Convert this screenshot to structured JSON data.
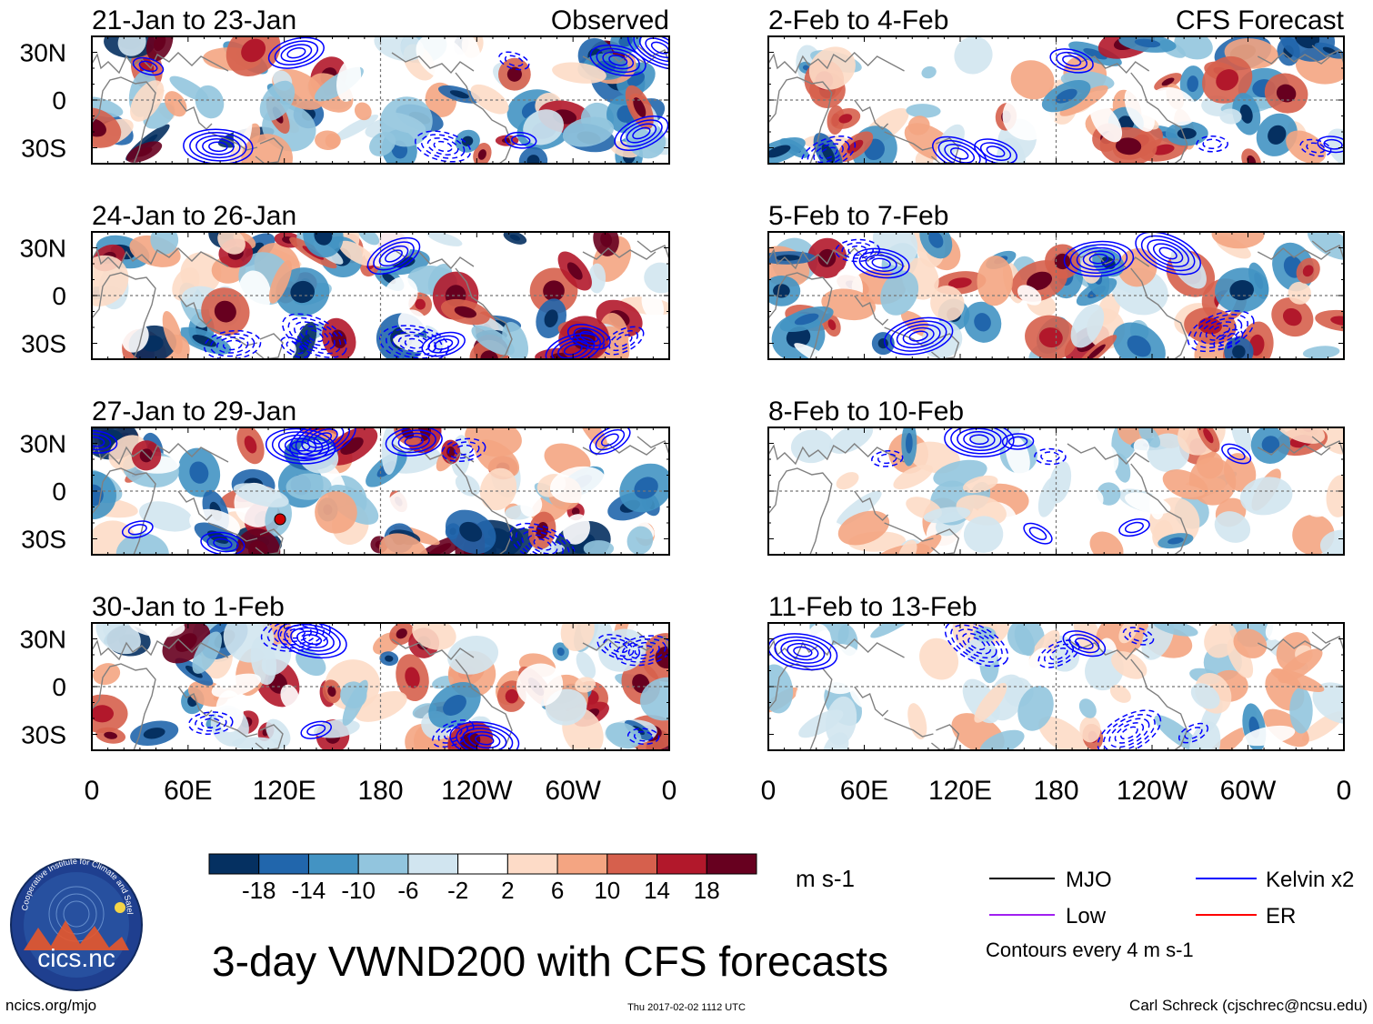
{
  "chart_data": {
    "type": "heatmap",
    "title": "3-day VWND200 with CFS forecasts",
    "variable": "VWND200",
    "units": "m s-1",
    "columns": [
      {
        "label": "Observed",
        "panels": [
          "21-Jan to 23-Jan",
          "24-Jan to 26-Jan",
          "27-Jan to 29-Jan",
          "30-Jan to 1-Feb"
        ]
      },
      {
        "label": "CFS Forecast",
        "panels": [
          "2-Feb to 4-Feb",
          "5-Feb to 7-Feb",
          "8-Feb to 10-Feb",
          "11-Feb to 13-Feb"
        ]
      }
    ],
    "x_axis": {
      "ticks": [
        "0",
        "60E",
        "120E",
        "180",
        "120W",
        "60W",
        "0"
      ],
      "range_deg": [
        0,
        360
      ]
    },
    "y_axis": {
      "ticks": [
        "30N",
        "0",
        "30S"
      ],
      "range_deg": [
        -40,
        40
      ]
    },
    "colorbar": {
      "tick_labels": [
        "-18",
        "-14",
        "-10",
        "-6",
        "-2",
        "2",
        "6",
        "10",
        "14",
        "18"
      ],
      "levels": [
        -18,
        -14,
        -10,
        -6,
        -2,
        2,
        6,
        10,
        14,
        18
      ],
      "colors": [
        "#053061",
        "#2166ac",
        "#4393c3",
        "#92c5de",
        "#d1e5f0",
        "#ffffff",
        "#fddbc7",
        "#f4a582",
        "#d6604d",
        "#b2182b",
        "#67001f"
      ]
    },
    "legend": [
      {
        "label": "MJO",
        "color": "#000000"
      },
      {
        "label": "Kelvin x2",
        "color": "#0000ff"
      },
      {
        "label": "Low",
        "color": "#a020f0"
      },
      {
        "label": "ER",
        "color": "#ff0000"
      }
    ],
    "contour_note": "Contours every 4 m s-1"
  },
  "footer": {
    "left": "ncics.org/mjo",
    "center": "Thu 2017-02-02 1112 UTC",
    "right": "Carl Schreck (cjschrec@ncsu.edu)"
  },
  "logo": {
    "text": "cics.nc",
    "ring_text": "Cooperative Institute for Climate and Satellites"
  },
  "colors": {
    "equator_line": "#777777",
    "coast": "#808080",
    "kelvin": "#0000ff",
    "axis": "#000000"
  }
}
